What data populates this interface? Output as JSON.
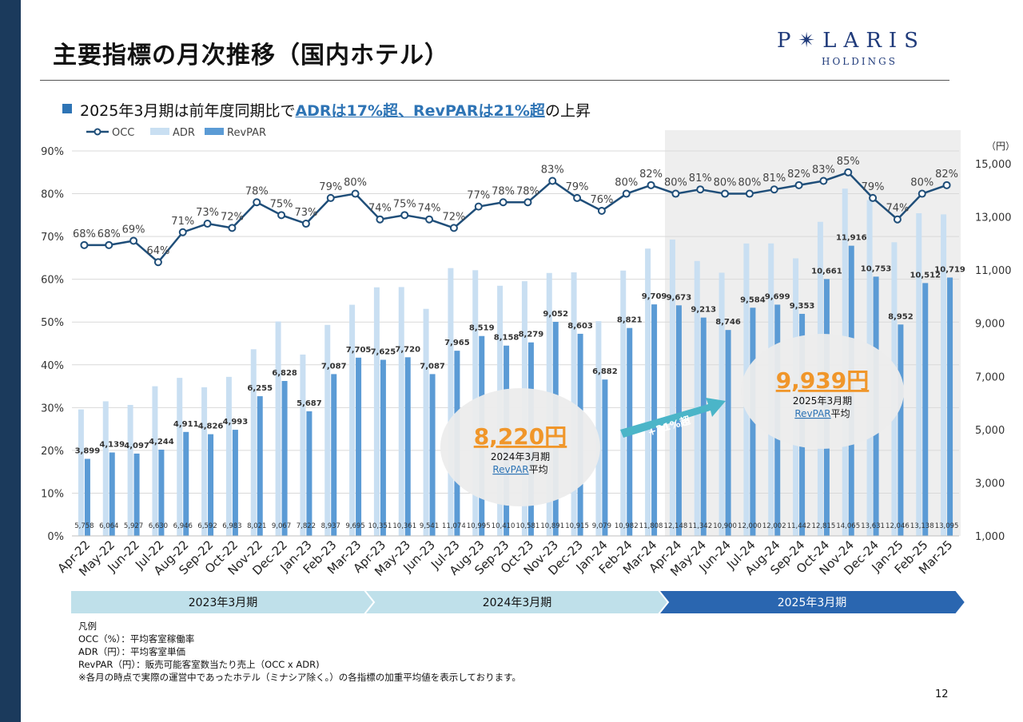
{
  "page": {
    "title": "主要指標の月次推移（国内ホテル）",
    "subtitle_pre": "2025年3月期は前年度同期比で",
    "subtitle_hl": "ADRは17%超、RevPARは21%超",
    "subtitle_post": "の上昇",
    "logo_brand": "P✴LARIS",
    "logo_sub": "HOLDINGS",
    "page_number": "12",
    "notes": [
      "凡例",
      "OCC（%）：平均客室稼働率",
      "ADR（円）：平均客室単価",
      "RevPAR（円）：販売可能客室数当たり売上（OCC x ADR)",
      "※各月の時点で実際の運営中であったホテル（ミナシア除く。）の各指標の加重平均値を表示しております。"
    ]
  },
  "chart_data": {
    "type": "bar",
    "categories": [
      "Apr-22",
      "May-22",
      "Jun-22",
      "Jul-22",
      "Aug-22",
      "Sep-22",
      "Oct-22",
      "Nov-22",
      "Dec-22",
      "Jan-23",
      "Feb-23",
      "Mar-23",
      "Apr-23",
      "May-23",
      "Jun-23",
      "Jul-23",
      "Aug-23",
      "Sep-23",
      "Oct-23",
      "Nov-23",
      "Dec-23",
      "Jan-24",
      "Feb-24",
      "Mar-24",
      "Apr-24",
      "May-24",
      "Jun-24",
      "Jul-24",
      "Aug-24",
      "Sep-24",
      "Oct-24",
      "Nov-24",
      "Dec-24",
      "Jan-25",
      "Feb-25",
      "Mar-25"
    ],
    "series": [
      {
        "name": "OCC",
        "type": "line",
        "axis": "left",
        "values": [
          68,
          68,
          69,
          64,
          71,
          73,
          72,
          78,
          75,
          73,
          79,
          80,
          74,
          75,
          74,
          72,
          77,
          78,
          78,
          83,
          79,
          76,
          80,
          82,
          80,
          81,
          80,
          80,
          81,
          82,
          83,
          85,
          79,
          74,
          80,
          82
        ],
        "color": "#1f4e79"
      },
      {
        "name": "ADR",
        "type": "bar",
        "axis": "right",
        "values": [
          5758,
          6064,
          5927,
          6630,
          6946,
          6592,
          6983,
          8021,
          9067,
          7822,
          8937,
          9695,
          10351,
          10361,
          9541,
          11074,
          10995,
          10410,
          10581,
          10891,
          10915,
          9079,
          10982,
          11808,
          12148,
          11342,
          10900,
          12000,
          12002,
          11442,
          12815,
          14065,
          13631,
          12046,
          13138,
          13095
        ],
        "color": "#c9dff2"
      },
      {
        "name": "RevPAR",
        "type": "bar",
        "axis": "right",
        "values": [
          3899,
          4139,
          4097,
          4244,
          4911,
          4826,
          4993,
          6255,
          6828,
          5687,
          7087,
          7705,
          7625,
          7720,
          7087,
          7965,
          8519,
          8158,
          8279,
          9052,
          8603,
          6882,
          8821,
          9709,
          9673,
          9213,
          8746,
          9584,
          9699,
          9353,
          10661,
          11916,
          10753,
          8952,
          10512,
          10719
        ],
        "color": "#5b9bd5"
      }
    ],
    "y_left": {
      "ticks": [
        "0%",
        "10%",
        "20%",
        "30%",
        "40%",
        "50%",
        "60%",
        "70%",
        "80%",
        "90%"
      ],
      "ylim": [
        0,
        90
      ]
    },
    "y_right": {
      "unit": "（円）",
      "ticks": [
        "1,000",
        "3,000",
        "5,000",
        "7,000",
        "9,000",
        "11,000",
        "13,000",
        "15,000"
      ],
      "ylim": [
        1000,
        15500
      ]
    },
    "grid": true,
    "legend_position": "top-left",
    "highlight_range": [
      "Apr-24",
      "Mar-25"
    ],
    "callouts": [
      {
        "value": "8,220円",
        "line1": "2024年3月期",
        "line2_link": "RevPAR",
        "line2_rest": "平均"
      },
      {
        "value": "9,939円",
        "line1": "2025年3月期",
        "line2_link": "RevPAR",
        "line2_rest": "平均"
      }
    ],
    "growth_arrow_label": "+21%超",
    "periods": [
      {
        "label": "2023年3月期",
        "color": "#bfe0ea",
        "text_color": "#111"
      },
      {
        "label": "2024年3月期",
        "color": "#bfe0ea",
        "text_color": "#111"
      },
      {
        "label": "2025年3月期",
        "color": "#2a66b0",
        "text_color": "#ffffff"
      }
    ]
  }
}
